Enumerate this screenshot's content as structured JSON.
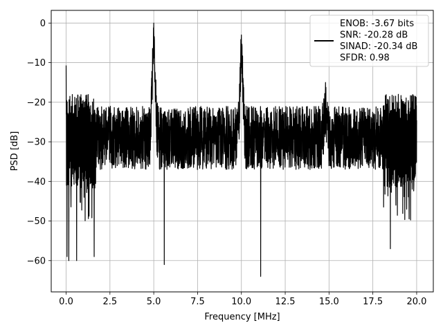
{
  "chart_data": {
    "type": "line",
    "title": "",
    "xlabel": "Frequency [MHz]",
    "ylabel": "PSD [dB]",
    "xlim": [
      -0.85,
      20.95
    ],
    "ylim": [
      -67.9,
      3.2
    ],
    "xticks": [
      0.0,
      2.5,
      5.0,
      7.5,
      10.0,
      12.5,
      15.0,
      17.5,
      20.0
    ],
    "xtick_labels": [
      "0.0",
      "2.5",
      "5.0",
      "7.5",
      "10.0",
      "12.5",
      "15.0",
      "17.5",
      "20.0"
    ],
    "yticks": [
      0,
      -10,
      -20,
      -30,
      -40,
      -50,
      -60
    ],
    "ytick_labels": [
      "0",
      "−10",
      "−20",
      "−30",
      "−40",
      "−50",
      "−60"
    ],
    "grid": true,
    "legend_position": "top-right",
    "legend_entries": [
      "ENOB: -3.67 bits",
      "SNR: -20.28 dB",
      "SINAD: -20.34 dB",
      "SFDR: 0.98"
    ],
    "series_color": "#000000",
    "series": [
      {
        "x_start": 0.0,
        "x_end": 20.0,
        "noise_floor_db": -30,
        "noise_band_db": [
          -42,
          -21
        ],
        "min_dips_db": [
          -59,
          -60,
          -60,
          -59,
          -61,
          -64,
          -57
        ],
        "peaks": [
          {
            "x": 0.0,
            "y": -10.7
          },
          {
            "x": 5.0,
            "y": 0.0
          },
          {
            "x": 10.0,
            "y": -3.0
          },
          {
            "x": 14.8,
            "y": -15.0
          }
        ]
      }
    ]
  }
}
